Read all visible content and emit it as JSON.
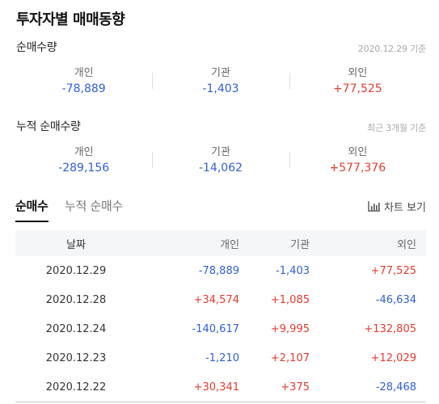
{
  "page_title": "투자자별 매매동향",
  "net_volume": {
    "title": "순매수량",
    "date": "2020.12.29 기준",
    "items": [
      {
        "label": "개인",
        "value": "-78,889",
        "sign": "neg"
      },
      {
        "label": "기관",
        "value": "-1,403",
        "sign": "neg"
      },
      {
        "label": "외인",
        "value": "+77,525",
        "sign": "pos"
      }
    ]
  },
  "cumulative_volume": {
    "title": "누적 순매수량",
    "date": "최근 3개월 기준",
    "items": [
      {
        "label": "개인",
        "value": "-289,156",
        "sign": "neg"
      },
      {
        "label": "기관",
        "value": "-14,062",
        "sign": "neg"
      },
      {
        "label": "외인",
        "value": "+577,376",
        "sign": "pos"
      }
    ]
  },
  "tabs": {
    "active": "순매수",
    "inactive": "누적 순매수"
  },
  "chart_button": {
    "label": "차트 보기",
    "icon": "bar-chart-icon"
  },
  "table": {
    "headers": [
      "날짜",
      "개인",
      "기관",
      "외인"
    ],
    "rows": [
      {
        "date": "2020.12.29",
        "individual": "-78,889",
        "institution": "-1,403",
        "foreign": "+77,525"
      },
      {
        "date": "2020.12.28",
        "individual": "+34,574",
        "institution": "+1,085",
        "foreign": "-46,634"
      },
      {
        "date": "2020.12.24",
        "individual": "-140,617",
        "institution": "+9,995",
        "foreign": "+132,805"
      },
      {
        "date": "2020.12.23",
        "individual": "-1,210",
        "institution": "+2,107",
        "foreign": "+12,029"
      },
      {
        "date": "2020.12.22",
        "individual": "+30,341",
        "institution": "+375",
        "foreign": "-28,468"
      }
    ]
  },
  "colors": {
    "positive": "#e33b2f",
    "negative": "#2f5fd6"
  }
}
